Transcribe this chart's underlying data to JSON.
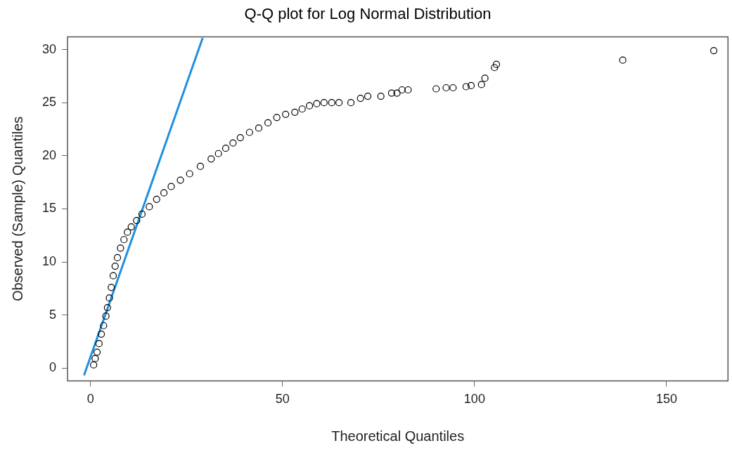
{
  "chart_data": {
    "type": "scatter",
    "title": "Q-Q plot for Log Normal Distribution",
    "xlabel": "Theoretical Quantiles",
    "ylabel": "Observed (Sample) Quantiles",
    "xlim": [
      -6,
      166
    ],
    "ylim": [
      -1.2,
      31.2
    ],
    "xticks": [
      0,
      50,
      100,
      150
    ],
    "yticks": [
      0,
      5,
      10,
      15,
      20,
      25,
      30
    ],
    "grid": false,
    "legend": false,
    "marker": "circle",
    "series": [
      {
        "color": "#000000",
        "x": [
          0.8,
          1.2,
          1.7,
          2.2,
          2.8,
          3.4,
          4.0,
          4.4,
          4.9,
          5.4,
          5.9,
          6.4,
          7.0,
          7.8,
          8.7,
          9.6,
          10.6,
          12.0,
          13.4,
          15.3,
          17.2,
          19.1,
          21.0,
          23.4,
          25.8,
          28.6,
          31.4,
          33.3,
          35.2,
          37.1,
          39.0,
          41.4,
          43.8,
          46.2,
          48.5,
          50.8,
          53.2,
          55.1,
          57.0,
          58.9,
          60.8,
          62.8,
          64.7,
          67.8,
          70.3,
          72.2,
          75.6,
          78.4,
          79.8,
          81.1,
          82.7,
          90.0,
          92.6,
          94.4,
          97.8,
          99.1,
          101.8,
          102.7,
          105.2,
          105.7,
          138.6,
          162.3
        ],
        "values": [
          0.3,
          0.9,
          1.5,
          2.3,
          3.2,
          4.0,
          4.9,
          5.7,
          6.6,
          7.6,
          8.7,
          9.6,
          10.4,
          11.3,
          12.1,
          12.8,
          13.3,
          13.9,
          14.5,
          15.2,
          15.9,
          16.5,
          17.1,
          17.7,
          18.3,
          19.0,
          19.7,
          20.2,
          20.7,
          21.2,
          21.7,
          22.2,
          22.6,
          23.1,
          23.6,
          23.9,
          24.1,
          24.4,
          24.7,
          24.9,
          25.0,
          25.0,
          25.0,
          25.0,
          25.4,
          25.6,
          25.6,
          25.9,
          25.9,
          26.2,
          26.2,
          26.3,
          26.4,
          26.4,
          26.5,
          26.6,
          26.7,
          27.3,
          28.3,
          28.6,
          29.0,
          29.9
        ]
      },
      {
        "type": "line",
        "color": "#1e90e0",
        "marker": "none",
        "line_style": "solid",
        "x": [
          -1.7,
          29.2
        ],
        "values": [
          -0.68,
          31.1
        ]
      }
    ]
  }
}
